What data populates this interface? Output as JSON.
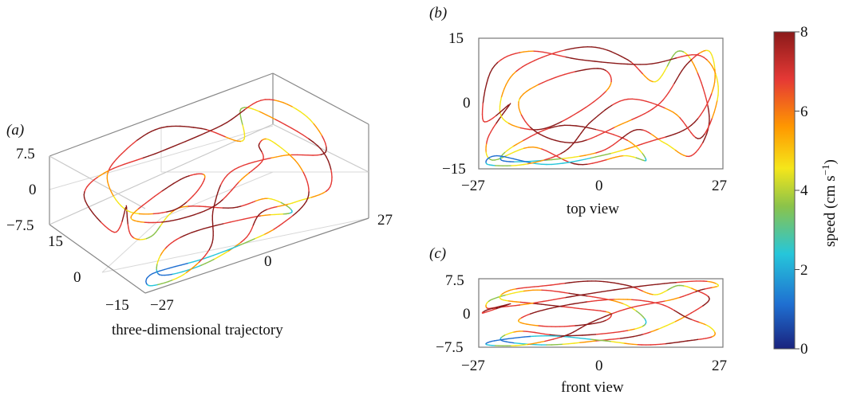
{
  "figure": {
    "panel_a": "(a)",
    "panel_b": "(b)",
    "panel_c": "(c)"
  },
  "chart_data": [
    {
      "type": "line",
      "title": "three-dimensional trajectory",
      "axes": {
        "x_ticks": [
          "−27",
          "0",
          "27"
        ],
        "y_ticks": [
          "−15",
          "0",
          "15"
        ],
        "z_ticks": [
          "−7.5",
          "0",
          "7.5"
        ]
      },
      "xlim": [
        -27,
        27
      ],
      "ylim": [
        -15,
        15
      ],
      "zlim": [
        -7.5,
        7.5
      ],
      "grid": true,
      "color_by": "speed"
    },
    {
      "type": "line",
      "title": "top view",
      "xlabel": "",
      "ylabel": "",
      "x_ticks": [
        "−27",
        "0",
        "27"
      ],
      "y_ticks": [
        "−15",
        "0",
        "15"
      ],
      "xlim": [
        -27,
        27
      ],
      "ylim": [
        -15,
        15
      ],
      "color_by": "speed"
    },
    {
      "type": "line",
      "title": "front view",
      "x_ticks": [
        "−27",
        "0",
        "27"
      ],
      "y_ticks": [
        "−7.5",
        "0",
        "7.5"
      ],
      "xlim": [
        -27,
        27
      ],
      "ylim": [
        -7.5,
        7.5
      ],
      "color_by": "speed"
    }
  ],
  "colorbar": {
    "label": "speed (cm s",
    "label_sup": "−1",
    "label_end": ")",
    "ticks": [
      "0",
      "2",
      "4",
      "6",
      "8"
    ],
    "range": [
      0,
      8
    ],
    "colors": [
      "#1a237e",
      "#1f6fd1",
      "#26c6da",
      "#8bc34a",
      "#f5e61a",
      "#ff9800",
      "#e53935",
      "#8b1a1a"
    ]
  },
  "trajectory_path": [
    [
      -20,
      0,
      2
    ],
    [
      -25,
      -8,
      1
    ],
    [
      -24,
      -13,
      3
    ],
    [
      -15,
      -10,
      5
    ],
    [
      -5,
      -14,
      4
    ],
    [
      5,
      -12,
      2
    ],
    [
      10,
      -13,
      -2
    ],
    [
      5,
      -8,
      -4
    ],
    [
      -8,
      -5,
      -5
    ],
    [
      -18,
      -9,
      -4
    ],
    [
      -22,
      -13,
      -6
    ],
    [
      -12,
      -13,
      -7
    ],
    [
      0,
      -11,
      -6
    ],
    [
      8,
      -6,
      -5
    ],
    [
      14,
      -9,
      -3
    ],
    [
      20,
      -12,
      0
    ],
    [
      24,
      -4,
      3
    ],
    [
      21,
      8,
      5
    ],
    [
      17,
      12,
      6
    ],
    [
      12,
      5,
      4
    ],
    [
      6,
      10,
      6
    ],
    [
      -2,
      13,
      7
    ],
    [
      -12,
      11,
      6
    ],
    [
      -20,
      6,
      5
    ],
    [
      -22,
      -3,
      3
    ],
    [
      -14,
      -6,
      2
    ],
    [
      -5,
      -2,
      1
    ],
    [
      2,
      4,
      0
    ],
    [
      0,
      8,
      -2
    ],
    [
      -10,
      6,
      -3
    ],
    [
      -18,
      1,
      -2
    ],
    [
      -15,
      -6,
      0
    ],
    [
      -6,
      -9,
      2
    ],
    [
      4,
      -5,
      3
    ],
    [
      13,
      0,
      2
    ],
    [
      19,
      9,
      -1
    ],
    [
      24,
      12,
      -3
    ],
    [
      25,
      4,
      -5
    ],
    [
      20,
      -5,
      -6
    ],
    [
      10,
      -9,
      -7
    ],
    [
      0,
      -12,
      -6
    ],
    [
      -12,
      -14,
      -5
    ],
    [
      -23,
      -12,
      -6
    ],
    [
      -25,
      -14,
      -7
    ],
    [
      -17,
      -14,
      -7
    ],
    [
      -8,
      -11,
      -5
    ],
    [
      -2,
      -4,
      -2
    ],
    [
      6,
      1,
      1
    ],
    [
      16,
      -2,
      3
    ],
    [
      22,
      -8,
      5
    ],
    [
      26,
      3,
      6
    ],
    [
      22,
      11,
      7
    ],
    [
      10,
      9,
      6
    ],
    [
      -4,
      10,
      4
    ],
    [
      -16,
      12,
      2
    ],
    [
      -24,
      8,
      1
    ],
    [
      -26,
      -4,
      0
    ],
    [
      -20,
      0,
      2
    ]
  ],
  "speed_profile": [
    8,
    7,
    3,
    6,
    8,
    5,
    2,
    7,
    8,
    6,
    1,
    3,
    7,
    8,
    4,
    7,
    8,
    6,
    3,
    5,
    8,
    8,
    7,
    6,
    4,
    8,
    7,
    6,
    8,
    7,
    5,
    8,
    8,
    6,
    7,
    8,
    4,
    6,
    8,
    7,
    3,
    2,
    1,
    2,
    5,
    8,
    8,
    7,
    6,
    8,
    4,
    7,
    8,
    8,
    6,
    8,
    7,
    8
  ]
}
